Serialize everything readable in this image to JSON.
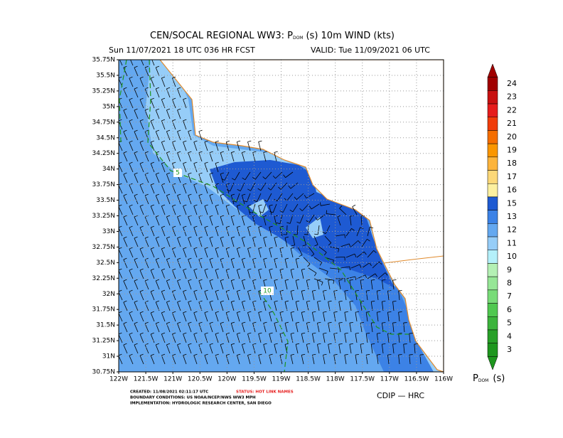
{
  "header": {
    "title_main": "CEN/SOCAL REGIONAL WW3: P",
    "title_sub": "DOM",
    "title_rest": "(s) 10m WIND (kts)",
    "run": "Sun 11/07/2021 18 UTC 036 HR FCST",
    "valid": "VALID: Tue 11/09/2021 06 UTC"
  },
  "axes": {
    "y_labels": [
      "35.75N",
      "35.5N",
      "35.25N",
      "35N",
      "34.75N",
      "34.5N",
      "34.25N",
      "34N",
      "33.75N",
      "33.5N",
      "33.25N",
      "33N",
      "32.75N",
      "32.5N",
      "32.25N",
      "32N",
      "31.75N",
      "31.5N",
      "31.25N",
      "31N",
      "30.75N"
    ],
    "x_labels": [
      "122W",
      "121.5W",
      "121W",
      "120.5W",
      "120W",
      "119.5W",
      "119W",
      "118.5W",
      "118W",
      "117.5W",
      "117W",
      "116.5W",
      "116W"
    ]
  },
  "contour_labels": [
    "5",
    "10"
  ],
  "colorbar": {
    "levels": [
      24,
      23,
      22,
      21,
      20,
      19,
      18,
      17,
      16,
      15,
      13,
      12,
      11,
      10,
      9,
      8,
      7,
      6,
      5,
      4,
      3
    ],
    "colors": [
      "#a00000",
      "#c81010",
      "#e61c1c",
      "#f03c0a",
      "#f56e00",
      "#fa9600",
      "#fcb43c",
      "#fcd878",
      "#fcf0a0",
      "#1e5ad2",
      "#3c82e6",
      "#64a8f0",
      "#96cdf8",
      "#b4f0fa",
      "#b4f0b4",
      "#96e696",
      "#78dc78",
      "#50c850",
      "#3cb43c",
      "#28a028",
      "#1e961e"
    ],
    "title": "P",
    "title_sub": "DOM",
    "title_unit": "(s)"
  },
  "footer": {
    "created": "CREATED: 11/08/2021 02:11:17 UTC",
    "status": "STATUS: HOT LINK NAMES",
    "boundary": "BOUNDARY CONDITIONS: US NOAA/NCEP/NWS WW3 MPH",
    "implementation": "IMPLEMENTATION: HYDROLOGIC RESEARCH CENTER, SAN DIEGO",
    "credit": "CDIP — HRC"
  }
}
